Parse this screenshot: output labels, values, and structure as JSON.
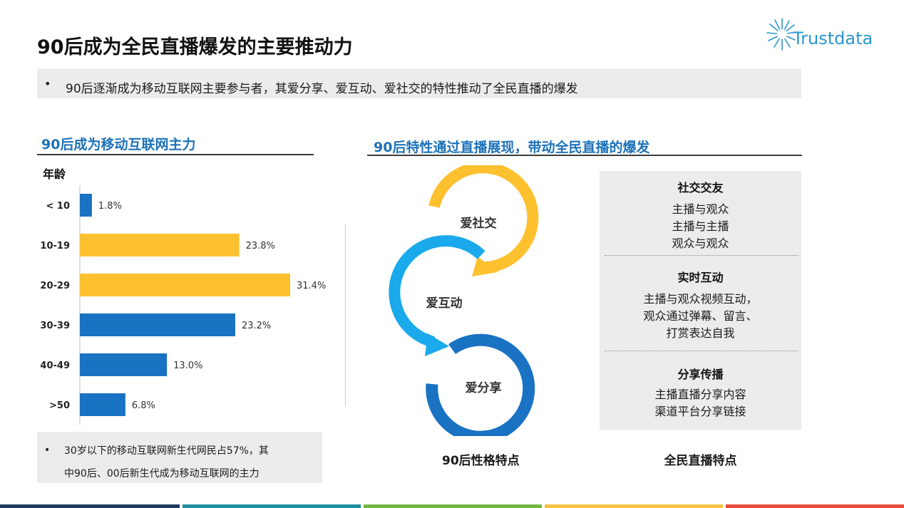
{
  "title": "90后成为全民直播爆发的主要推动力",
  "logo": {
    "text": "Trustdata"
  },
  "summary": {
    "bullet": "•",
    "text": "90后逐渐成为移动互联网主要参与者，其爱分享、爱互动、爱社交的特性推动了全民直播的爆发"
  },
  "left_section": {
    "title": "90后成为移动互联网主力"
  },
  "right_section": {
    "title": "90后特性通过直播展现，带动全民直播的爆发"
  },
  "chart_data": {
    "type": "bar",
    "orientation": "horizontal",
    "ylabel": "年龄",
    "categories": [
      "< 10",
      "10-19",
      "20-29",
      "30-39",
      "40-49",
      ">50"
    ],
    "values": [
      1.8,
      23.8,
      31.4,
      23.2,
      13.0,
      6.8
    ],
    "value_labels": [
      "1.8%",
      "23.8%",
      "31.4%",
      "23.2%",
      "13.0%",
      "6.8%"
    ],
    "colors": [
      "#1a72c3",
      "#fdc02f",
      "#fdc02f",
      "#1a72c3",
      "#1a72c3",
      "#1a72c3"
    ],
    "xlim": [
      0,
      31.4
    ],
    "grid": false,
    "legend": "none"
  },
  "note": {
    "bullet": "•",
    "line1": "30岁以下的移动互联网新生代网民占57%，其",
    "line2": "中90后、00后新生代成为移动互联网的主力"
  },
  "cycle": {
    "items": [
      "爱社交",
      "爱互动",
      "爱分享"
    ],
    "colors": [
      "#fdc02f",
      "#1aaaeb",
      "#1a72c3"
    ],
    "label": "90后性格特点"
  },
  "panel": {
    "sections": [
      {
        "title": "社交交友",
        "lines": [
          "主播与观众",
          "主播与主播",
          "观众与观众"
        ]
      },
      {
        "title": "实时互动",
        "lines": [
          "主播与观众视频互动，",
          "观众通过弹幕、留言、",
          "打赏表达自我"
        ]
      },
      {
        "title": "分享传播",
        "lines": [
          "主播直播分享内容",
          "渠道平台分享链接"
        ]
      }
    ],
    "label": "全民直播特点"
  },
  "footer_colors": [
    "#1e3a5f",
    "#1f8fa0",
    "#74b843",
    "#f5c242",
    "#e84c3d"
  ]
}
